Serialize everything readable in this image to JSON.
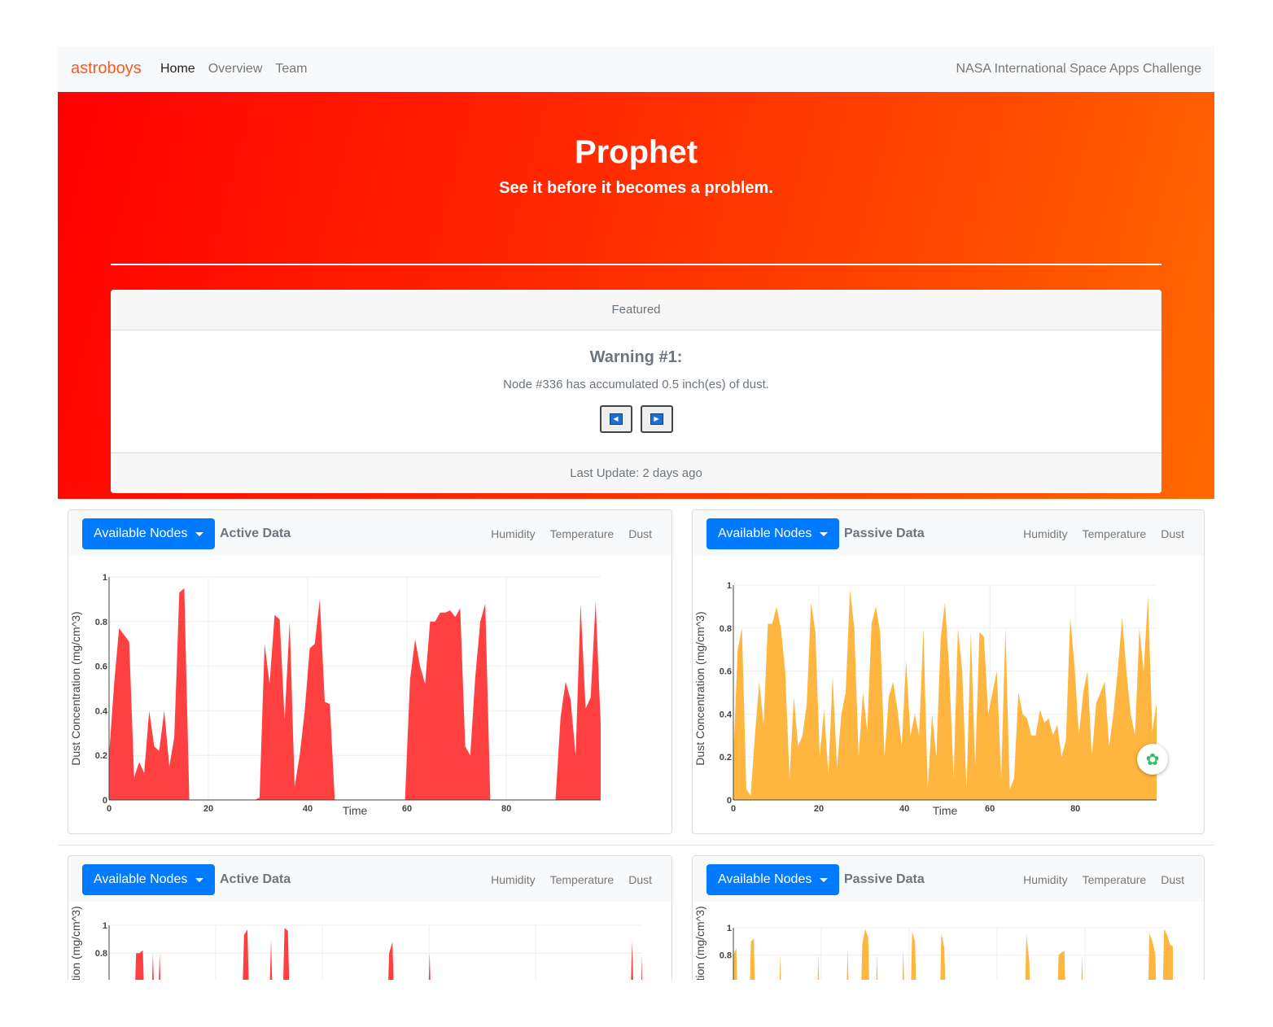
{
  "nav": {
    "brand": "astroboys",
    "links": [
      "Home",
      "Overview",
      "Team"
    ],
    "right_text": "NASA International Space Apps Challenge"
  },
  "hero": {
    "title": "Prophet",
    "subtitle": "See it before it becomes a problem."
  },
  "featured": {
    "header": "Featured",
    "warning_title": "Warning #1:",
    "warning_text": "Node #336 has accumulated 0.5 inch(es) of dust.",
    "footer": "Last Update: 2 days ago"
  },
  "panels": [
    {
      "button": "Available Nodes",
      "title": "Active Data",
      "tabs": [
        "Humidity",
        "Temperature",
        "Dust"
      ]
    },
    {
      "button": "Available Nodes",
      "title": "Passive Data",
      "tabs": [
        "Humidity",
        "Temperature",
        "Dust"
      ]
    },
    {
      "button": "Available Nodes",
      "title": "Active Data",
      "tabs": [
        "Humidity",
        "Temperature",
        "Dust"
      ]
    },
    {
      "button": "Available Nodes",
      "title": "Passive Data",
      "tabs": [
        "Humidity",
        "Temperature",
        "Dust"
      ]
    }
  ],
  "colors": {
    "active": "#ff4040",
    "passive": "#ffb640",
    "button": "#007bff",
    "brand": "#ff5722"
  },
  "icons": {
    "floating": "evernote-icon"
  },
  "chart_data": [
    {
      "type": "area",
      "xlabel": "Time",
      "ylabel": "Dust Concentration (mg/cm^3)",
      "xlim": [
        0,
        99
      ],
      "ylim": [
        0,
        1
      ],
      "xticks": [
        0,
        20,
        40,
        60,
        80
      ],
      "yticks": [
        0,
        0.2,
        0.4,
        0.6,
        0.8,
        1
      ],
      "color": "#ff4040",
      "values": [
        0.2,
        0.52,
        0.77,
        0.74,
        0.71,
        0.1,
        0.17,
        0.12,
        0.4,
        0.24,
        0.22,
        0.4,
        0.15,
        0.28,
        0.93,
        0.95,
        0,
        0,
        0,
        0,
        0,
        0,
        0,
        0,
        0,
        0,
        0,
        0,
        0,
        0,
        0.01,
        0.7,
        0.52,
        0.83,
        0.81,
        0.36,
        0.8,
        0.06,
        0.2,
        0.4,
        0.68,
        0.7,
        0.9,
        0.44,
        0.43,
        0,
        0,
        0,
        0,
        0,
        0,
        0,
        0,
        0,
        0,
        0,
        0,
        0,
        0,
        0,
        0.54,
        0.72,
        0.6,
        0.52,
        0.8,
        0.8,
        0.84,
        0.84,
        0.85,
        0.82,
        0.86,
        0.24,
        0.2,
        0.55,
        0.8,
        0.88,
        0,
        0,
        0,
        0,
        0,
        0,
        0,
        0,
        0,
        0,
        0,
        0,
        0,
        0,
        0.37,
        0.53,
        0.45,
        0.2,
        0.88,
        0.41,
        0.46,
        0.89,
        0.34
      ]
    },
    {
      "type": "area",
      "xlabel": "Time",
      "ylabel": "Dust Concentration (mg/cm^3)",
      "xlim": [
        0,
        99
      ],
      "ylim": [
        0,
        1
      ],
      "xticks": [
        0,
        20,
        40,
        60,
        80
      ],
      "yticks": [
        0,
        0.2,
        0.4,
        0.6,
        0.8,
        1
      ],
      "color": "#ffb640",
      "values": [
        0.2,
        0.7,
        0.8,
        0.05,
        0.02,
        0.3,
        0.55,
        0.35,
        0.82,
        0.82,
        0.9,
        0.8,
        0.6,
        0.1,
        0.48,
        0.25,
        0.3,
        0.45,
        0.92,
        0.78,
        0.2,
        0.42,
        0.12,
        0.58,
        0.15,
        0.4,
        0.5,
        0.98,
        0.8,
        0.2,
        0.5,
        0.32,
        0.82,
        0.9,
        0.78,
        0.2,
        0.48,
        0.55,
        0.42,
        0.25,
        0.65,
        0.3,
        0.4,
        0.3,
        0.8,
        0.05,
        0.4,
        0.2,
        0.75,
        0.92,
        0.6,
        0.1,
        0.8,
        0.6,
        0.05,
        0.78,
        0.16,
        0.78,
        0.76,
        0.4,
        0.5,
        0.6,
        0.1,
        0.8,
        0.05,
        0.1,
        0.5,
        0.4,
        0.38,
        0.3,
        0.3,
        0.42,
        0.36,
        0.38,
        0.3,
        0.35,
        0.2,
        0.28,
        0.85,
        0.62,
        0.3,
        0.5,
        0.6,
        0.2,
        0.45,
        0.5,
        0.55,
        0.25,
        0.4,
        0.6,
        0.85,
        0.6,
        0.4,
        0.3,
        0.8,
        0.6,
        0.95,
        0.32,
        0.45
      ]
    },
    {
      "type": "area",
      "ylabel": "Dust Concentration (mg/cm^3)",
      "ylim": [
        0,
        1
      ],
      "yticks": [
        0.8,
        1
      ],
      "color": "#ff4040",
      "values": [
        0,
        0,
        0,
        0,
        0,
        0,
        0,
        0,
        0.8,
        0.8,
        0.82,
        0,
        0,
        0.8,
        0,
        0.8,
        0,
        0,
        0,
        0,
        0,
        0,
        0,
        0,
        0,
        0,
        0,
        0,
        0,
        0,
        0,
        0,
        0,
        0,
        0,
        0,
        0,
        0,
        0,
        0,
        0.93,
        0.97,
        0,
        0,
        0,
        0,
        0,
        0,
        0.9,
        0,
        0,
        0,
        0.98,
        0.96,
        0,
        0,
        0,
        0,
        0,
        0,
        0,
        0,
        0,
        0,
        0,
        0,
        0,
        0,
        0,
        0,
        0,
        0,
        0,
        0,
        0,
        0,
        0,
        0,
        0,
        0,
        0,
        0,
        0,
        0.8,
        0.88,
        0,
        0,
        0,
        0,
        0,
        0,
        0,
        0,
        0,
        0,
        0.8,
        0,
        0,
        0,
        0,
        0,
        0,
        0,
        0,
        0,
        0,
        0,
        0,
        0,
        0,
        0,
        0,
        0,
        0,
        0,
        0,
        0,
        0,
        0,
        0,
        0,
        0,
        0,
        0,
        0,
        0,
        0,
        0,
        0,
        0,
        0,
        0,
        0,
        0,
        0,
        0,
        0,
        0,
        0,
        0,
        0,
        0,
        0,
        0,
        0,
        0,
        0,
        0,
        0,
        0,
        0,
        0,
        0,
        0,
        0,
        0.89,
        0,
        0,
        0.8
      ]
    },
    {
      "type": "area",
      "ylabel": "Dust Concentration (mg/cm^3)",
      "ylim": [
        0,
        1
      ],
      "yticks": [
        0.8,
        1
      ],
      "color": "#ffb640",
      "values": [
        0.8,
        0.85,
        0,
        0,
        0,
        0,
        0.9,
        0.92,
        0,
        0,
        0,
        0,
        0,
        0,
        0,
        0,
        0.8,
        0,
        0,
        0,
        0,
        0,
        0,
        0,
        0,
        0,
        0,
        0,
        0,
        0.8,
        0,
        0,
        0,
        0,
        0,
        0,
        0,
        0,
        0,
        0.85,
        0,
        0,
        0,
        0,
        0.88,
        0.99,
        0.93,
        0,
        0,
        0.8,
        0,
        0,
        0,
        0,
        0,
        0,
        0,
        0,
        0.85,
        0,
        0,
        0.97,
        0.9,
        0,
        0,
        0,
        0,
        0,
        0,
        0,
        0,
        0.96,
        0.85,
        0,
        0,
        0,
        0,
        0,
        0,
        0,
        0,
        0,
        0,
        0,
        0,
        0,
        0,
        0,
        0,
        0,
        0,
        0,
        0,
        0,
        0,
        0,
        0,
        0,
        0,
        0,
        0.95,
        0.75,
        0,
        0,
        0,
        0,
        0,
        0,
        0,
        0,
        0,
        0.8,
        0.82,
        0.83,
        0,
        0,
        0,
        0,
        0,
        0.8,
        0,
        0,
        0,
        0,
        0,
        0,
        0,
        0,
        0,
        0,
        0,
        0,
        0,
        0,
        0,
        0,
        0,
        0,
        0,
        0,
        0,
        0,
        0.96,
        0.9,
        0.8,
        0,
        0,
        0.99,
        0.95,
        0.88,
        0.86
      ]
    }
  ]
}
